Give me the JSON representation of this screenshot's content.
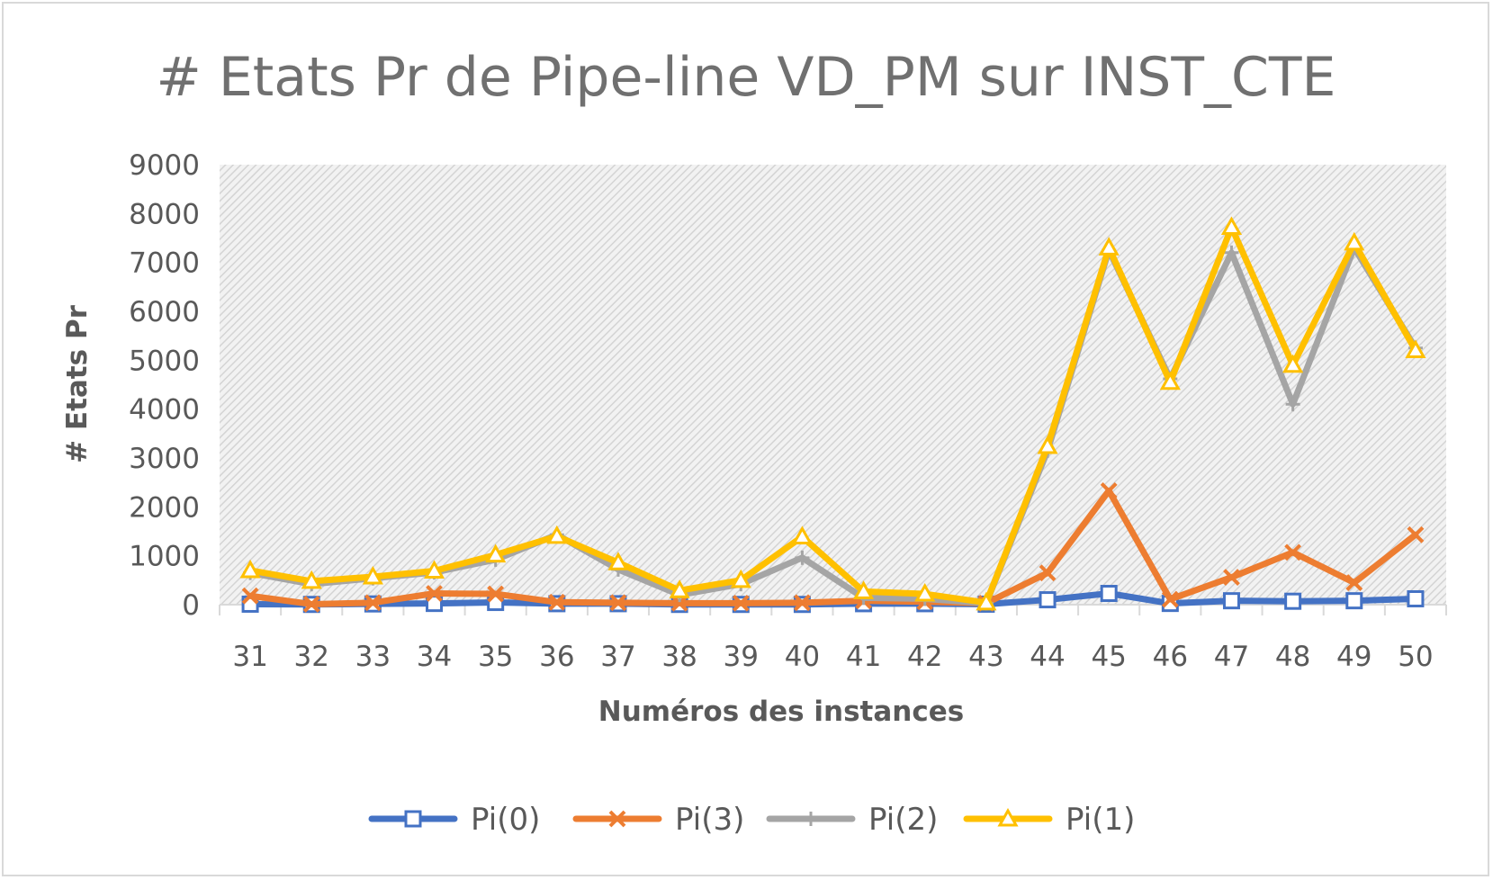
{
  "chart_data": {
    "type": "line",
    "title": "# Etats Pr de Pipe-line VD_PM sur INST_CTE",
    "xlabel": "Numéros des instances",
    "ylabel": "# Etats Pr",
    "categories": [
      "31",
      "32",
      "33",
      "34",
      "35",
      "36",
      "37",
      "38",
      "39",
      "40",
      "41",
      "42",
      "43",
      "44",
      "45",
      "46",
      "47",
      "48",
      "49",
      "50"
    ],
    "ylim": [
      0,
      9000
    ],
    "yticks": [
      "0",
      "1000",
      "2000",
      "3000",
      "4000",
      "5000",
      "6000",
      "7000",
      "8000",
      "9000"
    ],
    "legend_position": "bottom",
    "plot_background": "diagonal-hatch",
    "series": [
      {
        "name": "Pi(0)",
        "color": "#4472c4",
        "marker": "square",
        "values": [
          10,
          5,
          15,
          25,
          45,
          20,
          20,
          5,
          5,
          5,
          20,
          20,
          10,
          100,
          230,
          25,
          80,
          70,
          80,
          120
        ]
      },
      {
        "name": "Pi(3)",
        "color": "#ed7d31",
        "marker": "x",
        "values": [
          180,
          10,
          40,
          230,
          220,
          50,
          40,
          30,
          30,
          40,
          80,
          60,
          30,
          650,
          2330,
          110,
          560,
          1070,
          450,
          1430
        ]
      },
      {
        "name": "Pi(2)",
        "color": "#a5a5a5",
        "marker": "plus",
        "values": [
          650,
          420,
          540,
          660,
          920,
          1430,
          720,
          200,
          420,
          960,
          140,
          120,
          30,
          3150,
          7250,
          4620,
          7200,
          4100,
          7300,
          5250
        ]
      },
      {
        "name": "Pi(1)",
        "color": "#ffc000",
        "marker": "triangle",
        "values": [
          700,
          480,
          570,
          690,
          1020,
          1400,
          860,
          290,
          500,
          1390,
          270,
          220,
          40,
          3240,
          7300,
          4550,
          7720,
          4900,
          7400,
          5200
        ]
      }
    ]
  }
}
